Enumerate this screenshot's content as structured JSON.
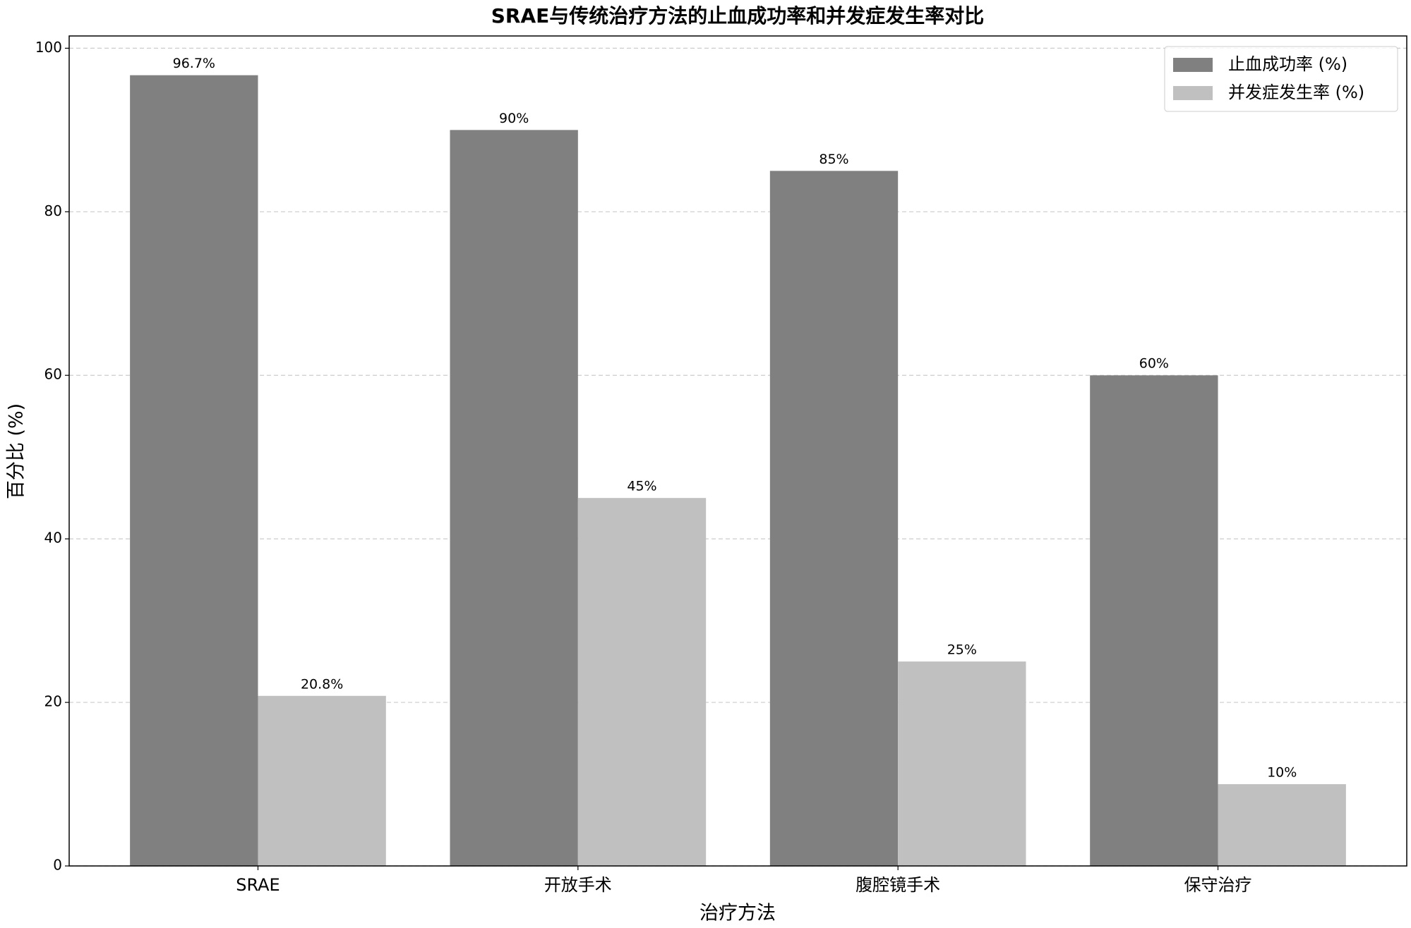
{
  "chart_data": {
    "type": "bar",
    "title": "SRAE与传统治疗方法的止血成功率和并发症发生率对比",
    "xlabel": "治疗方法",
    "ylabel": "百分比 (%)",
    "categories": [
      "SRAE",
      "开放手术",
      "腹腔镜手术",
      "保守治疗"
    ],
    "series": [
      {
        "name": "止血成功率 (%)",
        "color": "#808080",
        "values": [
          96.7,
          90,
          85,
          60
        ],
        "value_labels": [
          "96.7%",
          "90%",
          "85%",
          "60%"
        ]
      },
      {
        "name": "并发症发生率 (%)",
        "color": "#c0c0c0",
        "values": [
          20.8,
          45,
          25,
          10
        ],
        "value_labels": [
          "20.8%",
          "45%",
          "25%",
          "10%"
        ]
      }
    ],
    "ylim": [
      0,
      101.5
    ],
    "yticks": [
      0,
      20,
      40,
      60,
      80,
      100
    ],
    "grid": true,
    "legend": "upper right"
  }
}
